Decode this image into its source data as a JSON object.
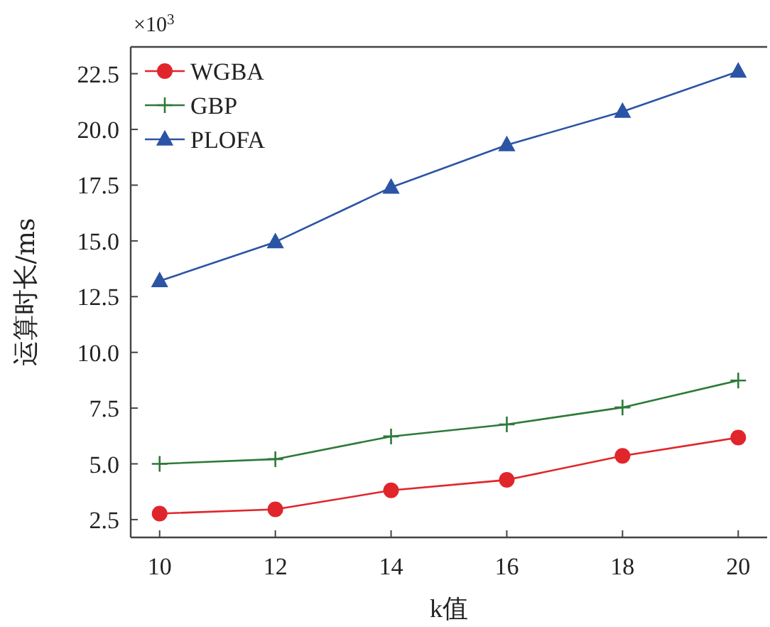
{
  "chart_data": {
    "type": "line",
    "xlabel": "k值",
    "ylabel": "运算时长/ms",
    "annotations": [
      "×10$^{3}$"
    ],
    "x": [
      10,
      12,
      14,
      16,
      18,
      20
    ],
    "series": [
      {
        "name": "WGBA",
        "color": "#e0262b",
        "marker": "circle",
        "values": [
          2.77,
          2.96,
          3.81,
          4.28,
          5.36,
          6.18
        ]
      },
      {
        "name": "GBP",
        "color": "#2e7a3a",
        "marker": "cross",
        "values": [
          5.0,
          5.21,
          6.23,
          6.77,
          7.53,
          8.74
        ]
      },
      {
        "name": "PLOFA",
        "color": "#2b54a4",
        "marker": "triangle",
        "values": [
          13.2,
          14.95,
          17.4,
          19.3,
          20.8,
          22.6
        ]
      }
    ],
    "xlim": [
      9.5,
      20.5
    ],
    "ylim": [
      1.7,
      23.7
    ],
    "xticks": [
      10,
      12,
      14,
      16,
      18,
      20
    ],
    "yticks": [
      {
        "value": 2.5,
        "label": "2.5"
      },
      {
        "value": 5,
        "label": "5.0"
      },
      {
        "value": 7.5,
        "label": "7.5"
      },
      {
        "value": 10,
        "label": "10.0"
      },
      {
        "value": 12.5,
        "label": "12.5"
      },
      {
        "value": 15,
        "label": "15.0"
      },
      {
        "value": 17.5,
        "label": "17.5"
      },
      {
        "value": 20,
        "label": "20.0"
      },
      {
        "value": 22.5,
        "label": "22.5"
      }
    ],
    "legend": "top left",
    "grid": false
  }
}
